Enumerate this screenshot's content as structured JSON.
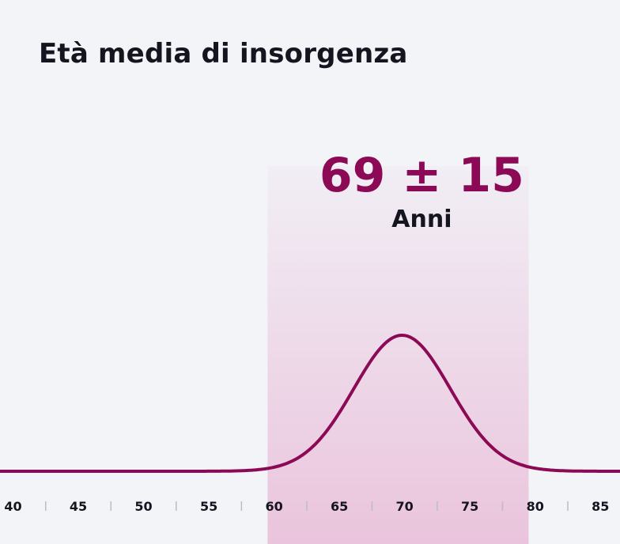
{
  "title": "Età media di insorgenza",
  "colors": {
    "accent": "#8c0a55",
    "band_top": "#f1eef5",
    "band_bottom": "#eac4dc",
    "tick": "#b9bcc8",
    "text": "#15151f",
    "background": "#f3f4f8"
  },
  "chart_data": {
    "type": "area",
    "title": "Età media di insorgenza",
    "xlabel": "",
    "ylabel": "",
    "x_ticks": [
      40,
      45,
      50,
      55,
      60,
      65,
      70,
      75,
      80,
      85
    ],
    "xlim": [
      39,
      86.5
    ],
    "mean": 69,
    "sd": 15,
    "highlight_range": [
      59.5,
      79.5
    ],
    "curve": {
      "peak_x": 69.8,
      "spread": 3.7
    },
    "annotation": {
      "value_text": "69 ± 15",
      "unit_text": "Anni"
    }
  }
}
